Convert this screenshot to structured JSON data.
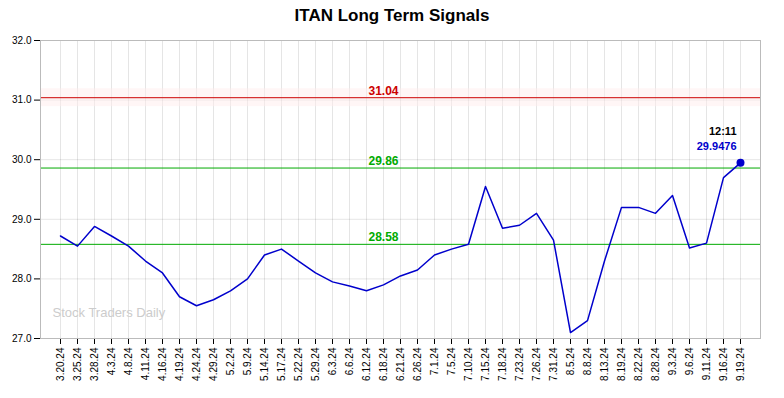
{
  "chart_data": {
    "type": "line",
    "title": "ITAN Long Term Signals",
    "categories": [
      "3.20.24",
      "3.25.24",
      "3.28.24",
      "4.3.24",
      "4.8.24",
      "4.11.24",
      "4.16.24",
      "4.19.24",
      "4.24.24",
      "4.29.24",
      "5.2.24",
      "5.9.24",
      "5.14.24",
      "5.17.24",
      "5.22.24",
      "5.29.24",
      "6.3.24",
      "6.6.24",
      "6.12.24",
      "6.18.24",
      "6.21.24",
      "6.26.24",
      "7.1.24",
      "7.5.24",
      "7.10.24",
      "7.15.24",
      "7.18.24",
      "7.23.24",
      "7.26.24",
      "7.31.24",
      "8.5.24",
      "8.8.24",
      "8.13.24",
      "8.19.24",
      "8.22.24",
      "8.28.24",
      "9.3.24",
      "9.6.24",
      "9.11.24",
      "9.16.24",
      "9.19.24"
    ],
    "values": [
      28.72,
      28.55,
      28.88,
      28.72,
      28.55,
      28.3,
      28.1,
      27.7,
      27.55,
      27.65,
      27.8,
      28.0,
      28.4,
      28.5,
      28.3,
      28.1,
      27.95,
      27.88,
      27.8,
      27.9,
      28.05,
      28.15,
      28.4,
      28.5,
      28.58,
      29.55,
      28.85,
      28.9,
      29.1,
      28.65,
      27.1,
      27.3,
      28.3,
      29.2,
      29.2,
      29.1,
      29.4,
      28.52,
      28.6,
      29.7,
      29.9476
    ],
    "color": "#0000cc",
    "ylim": [
      27,
      32
    ],
    "yticks": [
      27,
      28,
      29,
      30,
      31,
      32
    ],
    "grid": true,
    "hlines": [
      {
        "value": 31.04,
        "color": "#cc0000",
        "label": "31.04"
      },
      {
        "value": 29.86,
        "color": "#00aa00",
        "label": "29.86"
      },
      {
        "value": 28.58,
        "color": "#00aa00",
        "label": "28.58"
      }
    ],
    "bands": [
      {
        "from": 30.89,
        "to": 31.19,
        "color": "#ffeeee"
      }
    ],
    "last_point_labels": [
      {
        "text": "12:11",
        "color": "#000000"
      },
      {
        "text": "29.9476",
        "color": "#0000cc"
      }
    ],
    "watermark": {
      "text": "Stock Traders Daily",
      "color": "#cccccc"
    }
  }
}
